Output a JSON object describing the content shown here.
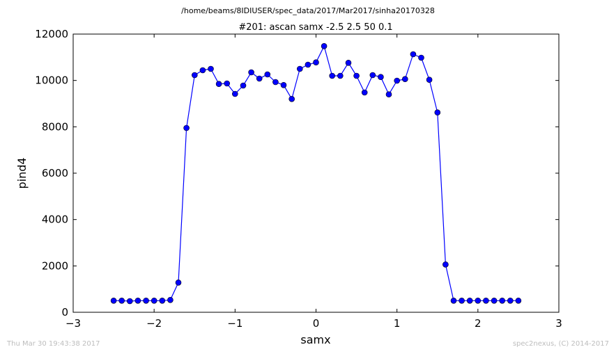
{
  "header": {
    "path": "/home/beams/8IDIUSER/spec_data/2017/Mar2017/sinha20170328"
  },
  "footer": {
    "timestamp": "Thu Mar 30 19:43:38 2017",
    "credit": "spec2nexus, (C) 2014-2017"
  },
  "colors": {
    "series": "#0000ff",
    "axes": "#000000",
    "footer_text": "#bdbdbd"
  },
  "chart_data": {
    "type": "line",
    "title": "#201: ascan  samx -2.5 2.5  50 0.1",
    "xlabel": "samx",
    "ylabel": "pind4",
    "xlim": [
      -3,
      3
    ],
    "ylim": [
      0,
      12000
    ],
    "xticks": [
      -3,
      -2,
      -1,
      0,
      1,
      2,
      3
    ],
    "xtick_labels": [
      "−3",
      "−2",
      "−1",
      "0",
      "1",
      "2",
      "3"
    ],
    "yticks": [
      0,
      2000,
      4000,
      6000,
      8000,
      10000,
      12000
    ],
    "ytick_labels": [
      "0",
      "2000",
      "4000",
      "6000",
      "8000",
      "10000",
      "12000"
    ],
    "grid": false,
    "marker": "circle",
    "series": [
      {
        "x": [
          -2.5,
          -2.4,
          -2.3,
          -2.2,
          -2.1,
          -2.0,
          -1.9,
          -1.8,
          -1.7,
          -1.6,
          -1.5,
          -1.4,
          -1.3,
          -1.2,
          -1.1,
          -1.0,
          -0.9,
          -0.8,
          -0.7,
          -0.6,
          -0.5,
          -0.4,
          -0.3,
          -0.2,
          -0.1,
          0.0,
          0.1,
          0.2,
          0.3,
          0.4,
          0.5,
          0.6,
          0.7,
          0.8,
          0.9,
          1.0,
          1.1,
          1.2,
          1.3,
          1.4,
          1.5,
          1.6,
          1.7,
          1.8,
          1.9,
          2.0,
          2.1,
          2.2,
          2.3,
          2.4,
          2.5
        ],
        "y": [
          500,
          500,
          480,
          500,
          500,
          500,
          500,
          530,
          1280,
          7950,
          10230,
          10440,
          10500,
          9850,
          9870,
          9420,
          9780,
          10350,
          10080,
          10260,
          9930,
          9800,
          9200,
          10500,
          10680,
          10780,
          11480,
          10200,
          10200,
          10760,
          10200,
          9480,
          10230,
          10150,
          9400,
          9990,
          10060,
          11130,
          10980,
          10030,
          8620,
          2060,
          500,
          500,
          500,
          500,
          500,
          500,
          500,
          500,
          500
        ]
      }
    ]
  }
}
